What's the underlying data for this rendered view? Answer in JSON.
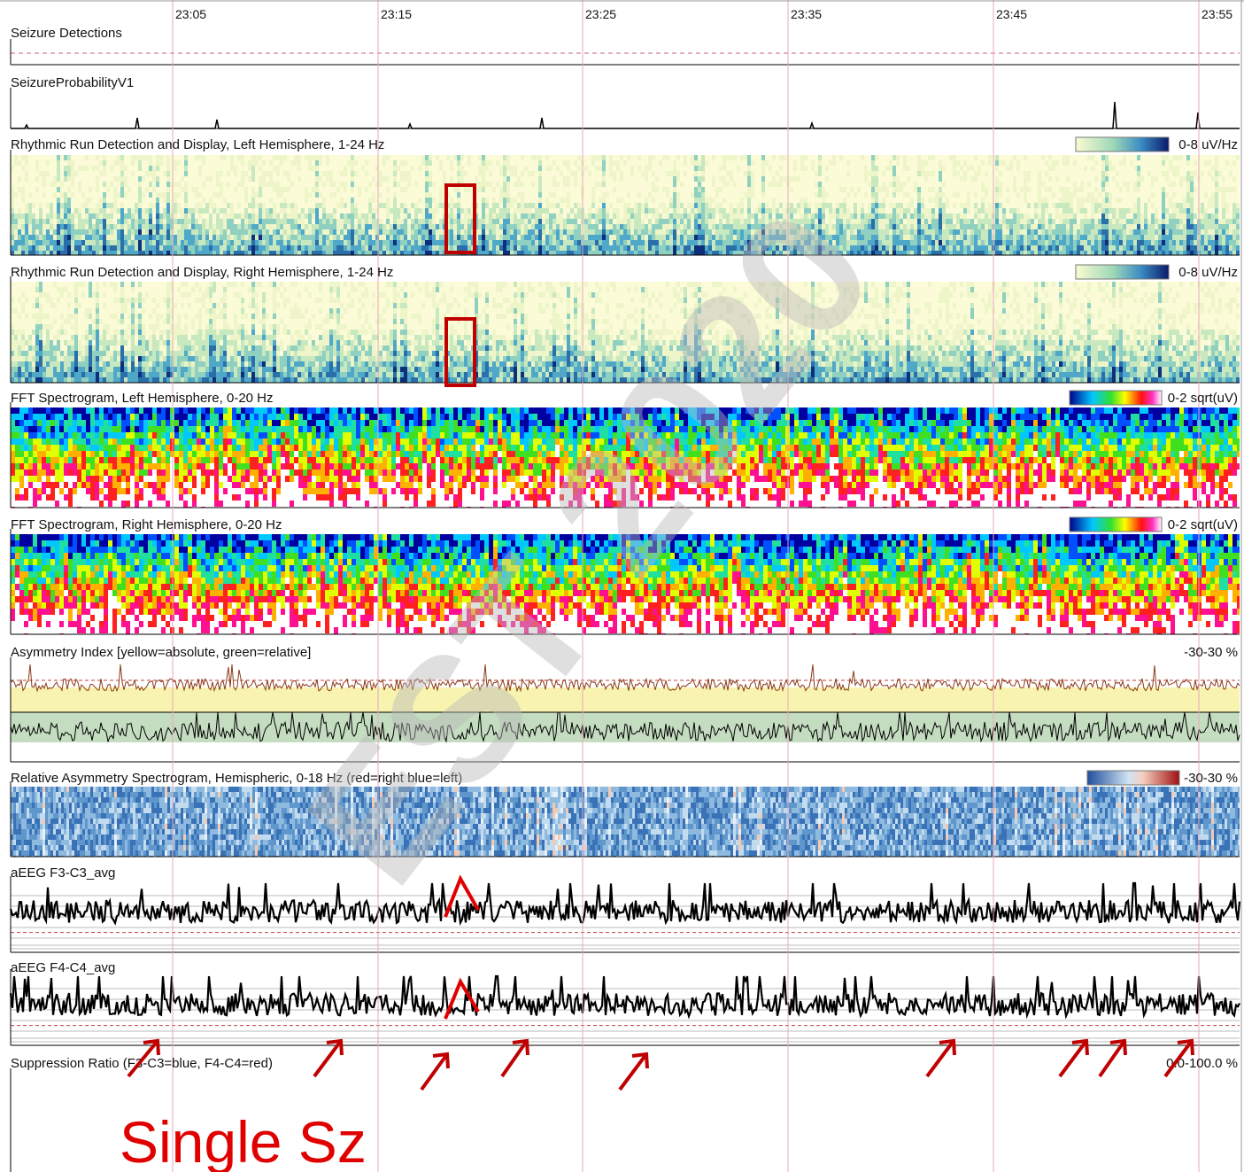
{
  "time_axis": {
    "labels": [
      "23:05",
      "23:15",
      "23:25",
      "23:35",
      "23:45",
      "23:55"
    ]
  },
  "panels": [
    {
      "title": "Seizure Detections"
    },
    {
      "title": "SeizureProbabilityV1"
    },
    {
      "title": "Rhythmic Run Detection and Display, Left Hemisphere, 1-24 Hz",
      "scale": "0-8 uV/Hz"
    },
    {
      "title": "Rhythmic Run Detection and Display, Right Hemisphere, 1-24 Hz",
      "scale": "0-8 uV/Hz"
    },
    {
      "title": "FFT Spectrogram, Left Hemisphere, 0-20 Hz",
      "scale": "0-2 sqrt(uV)"
    },
    {
      "title": "FFT Spectrogram, Right Hemisphere, 0-20 Hz",
      "scale": "0-2 sqrt(uV)"
    },
    {
      "title": "Asymmetry Index [yellow=absolute, green=relative]",
      "scale": "-30-30 %"
    },
    {
      "title": "Relative Asymmetry Spectrogram, Hemispheric, 0-18 Hz (red=right blue=left)",
      "scale": "-30-30 %"
    },
    {
      "title": "aEEG F3-C3_avg"
    },
    {
      "title": "aEEG F4-C4_avg"
    },
    {
      "title": "Suppression Ratio (F3-C3=blue, F4-C4=red)",
      "scale": "0.0-100.0 %"
    }
  ],
  "annotation": "Single Sz",
  "watermark": "EST 2020"
}
